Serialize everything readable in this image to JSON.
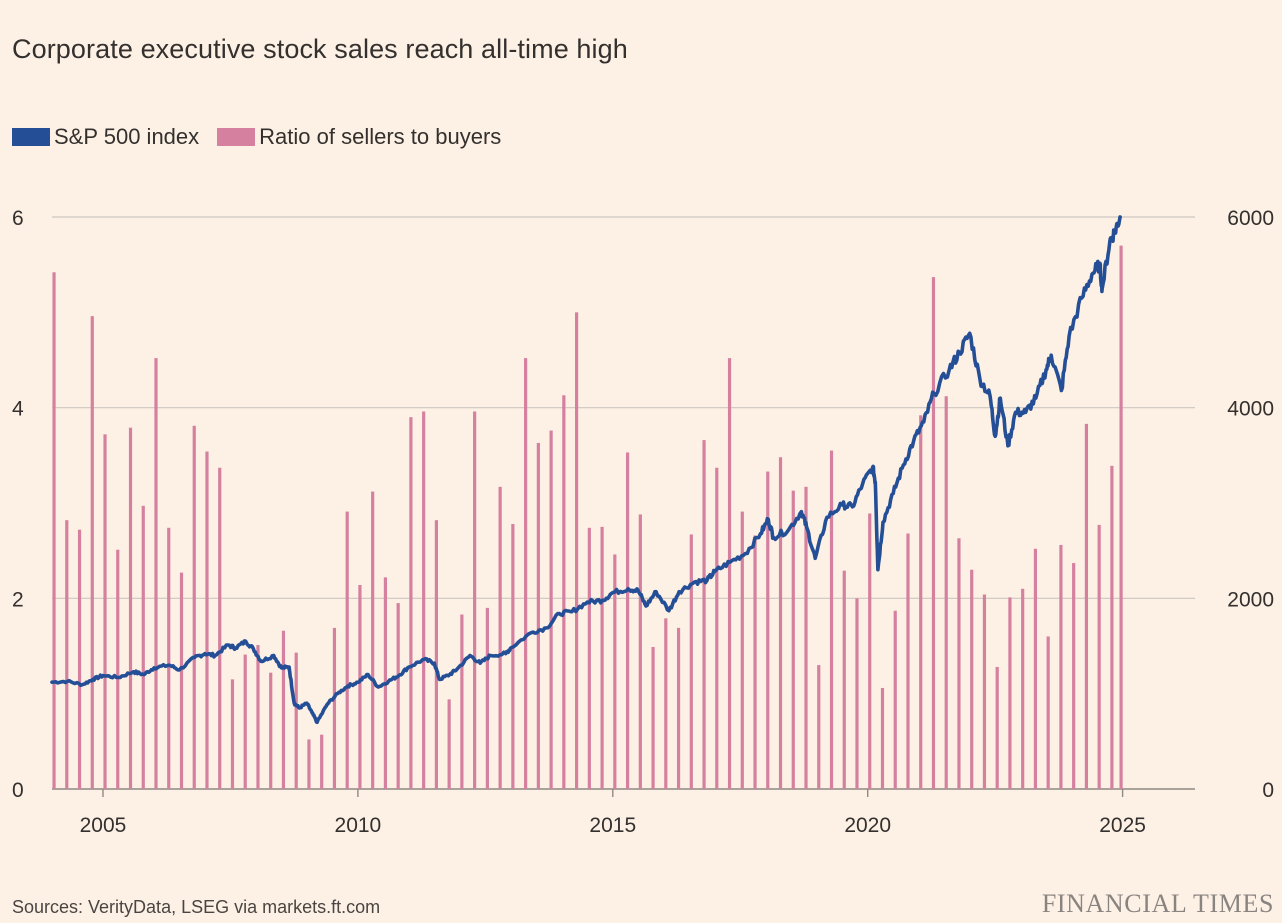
{
  "title": "Corporate executive stock sales reach all-time high",
  "legend": [
    {
      "label": "S&P 500 index",
      "color": "#244f96"
    },
    {
      "label": "Ratio of sellers to buyers",
      "color": "#d5809f"
    }
  ],
  "source": "Sources: VerityData, LSEG via markets.ft.com",
  "brand": "FINANCIAL TIMES",
  "colors": {
    "background": "#fdf1e6",
    "grid": "#cdc6bf",
    "text": "#33302e"
  },
  "chart_data": {
    "type": "bar+line",
    "left_axis": {
      "ticks": [
        0,
        2,
        4,
        6
      ],
      "range": [
        0,
        6
      ]
    },
    "right_axis": {
      "ticks": [
        0,
        2000,
        4000,
        6000
      ],
      "range": [
        0,
        6000
      ]
    },
    "x_axis": {
      "ticks": [
        2005,
        2010,
        2015,
        2020,
        2025
      ],
      "range": [
        2004.0,
        2025.4
      ]
    },
    "grid": true,
    "series": [
      {
        "name": "Ratio of sellers to buyers",
        "type": "bar",
        "axis": "left",
        "x": [
          2004.04,
          2004.29,
          2004.54,
          2004.79,
          2005.04,
          2005.29,
          2005.54,
          2005.79,
          2006.04,
          2006.29,
          2006.54,
          2006.79,
          2007.04,
          2007.29,
          2007.54,
          2007.79,
          2008.04,
          2008.29,
          2008.54,
          2008.79,
          2009.04,
          2009.29,
          2009.54,
          2009.79,
          2010.04,
          2010.29,
          2010.54,
          2010.79,
          2011.04,
          2011.29,
          2011.54,
          2011.79,
          2012.04,
          2012.29,
          2012.54,
          2012.79,
          2013.04,
          2013.29,
          2013.54,
          2013.79,
          2014.04,
          2014.29,
          2014.54,
          2014.79,
          2015.04,
          2015.29,
          2015.54,
          2015.79,
          2016.04,
          2016.29,
          2016.54,
          2016.79,
          2017.04,
          2017.29,
          2017.54,
          2017.79,
          2018.04,
          2018.29,
          2018.54,
          2018.79,
          2019.04,
          2019.29,
          2019.54,
          2019.79,
          2020.04,
          2020.29,
          2020.54,
          2020.79,
          2021.04,
          2021.29,
          2021.54,
          2021.79,
          2022.04,
          2022.29,
          2022.54,
          2022.79,
          2023.04,
          2023.29,
          2023.54,
          2023.79,
          2024.04,
          2024.29,
          2024.54,
          2024.79
        ],
        "values": [
          5.42,
          2.82,
          2.72,
          4.96,
          3.72,
          2.51,
          3.79,
          2.97,
          4.52,
          2.74,
          2.27,
          3.81,
          3.54,
          3.37,
          1.15,
          1.41,
          1.51,
          1.22,
          1.66,
          1.43,
          0.52,
          0.57,
          1.69,
          2.91,
          2.14,
          3.12,
          2.22,
          1.95,
          3.9,
          3.96,
          2.82,
          0.94,
          1.83,
          3.96,
          1.9,
          3.17,
          2.78,
          4.52,
          3.63,
          3.76,
          4.13,
          5.0,
          2.74,
          2.75,
          2.46,
          3.53,
          2.88,
          1.49,
          1.79,
          1.69,
          2.67,
          3.66,
          3.37,
          4.52,
          2.91,
          2.66,
          3.33,
          3.48,
          3.13,
          3.17,
          1.3,
          3.55,
          2.29,
          2.0,
          2.89,
          1.06,
          1.87,
          2.68,
          3.92,
          5.37,
          4.12,
          2.63,
          2.3,
          2.04,
          1.28,
          2.01,
          2.1,
          2.52,
          1.6,
          2.56,
          2.37,
          3.83,
          2.77,
          3.39
        ],
        "last": {
          "x": 2024.97,
          "value": 5.7
        }
      },
      {
        "name": "S&P 500 index",
        "type": "line",
        "axis": "right",
        "points": [
          [
            2004.0,
            1120
          ],
          [
            2004.3,
            1130
          ],
          [
            2004.6,
            1095
          ],
          [
            2004.8,
            1150
          ],
          [
            2005.0,
            1190
          ],
          [
            2005.3,
            1170
          ],
          [
            2005.6,
            1230
          ],
          [
            2005.8,
            1200
          ],
          [
            2006.0,
            1270
          ],
          [
            2006.3,
            1300
          ],
          [
            2006.5,
            1250
          ],
          [
            2006.8,
            1380
          ],
          [
            2007.0,
            1420
          ],
          [
            2007.2,
            1400
          ],
          [
            2007.45,
            1510
          ],
          [
            2007.6,
            1480
          ],
          [
            2007.8,
            1550
          ],
          [
            2007.95,
            1470
          ],
          [
            2008.1,
            1340
          ],
          [
            2008.35,
            1400
          ],
          [
            2008.5,
            1270
          ],
          [
            2008.65,
            1280
          ],
          [
            2008.75,
            900
          ],
          [
            2008.85,
            850
          ],
          [
            2009.0,
            900
          ],
          [
            2009.1,
            800
          ],
          [
            2009.2,
            700
          ],
          [
            2009.4,
            890
          ],
          [
            2009.6,
            1000
          ],
          [
            2009.8,
            1080
          ],
          [
            2010.0,
            1120
          ],
          [
            2010.2,
            1200
          ],
          [
            2010.4,
            1070
          ],
          [
            2010.6,
            1130
          ],
          [
            2010.8,
            1190
          ],
          [
            2011.0,
            1280
          ],
          [
            2011.3,
            1360
          ],
          [
            2011.5,
            1320
          ],
          [
            2011.6,
            1150
          ],
          [
            2011.8,
            1200
          ],
          [
            2011.95,
            1260
          ],
          [
            2012.2,
            1400
          ],
          [
            2012.4,
            1320
          ],
          [
            2012.6,
            1400
          ],
          [
            2012.9,
            1420
          ],
          [
            2013.0,
            1480
          ],
          [
            2013.4,
            1640
          ],
          [
            2013.7,
            1690
          ],
          [
            2013.95,
            1840
          ],
          [
            2014.2,
            1860
          ],
          [
            2014.5,
            1960
          ],
          [
            2014.8,
            1980
          ],
          [
            2015.0,
            2060
          ],
          [
            2015.3,
            2100
          ],
          [
            2015.5,
            2080
          ],
          [
            2015.65,
            1920
          ],
          [
            2015.85,
            2070
          ],
          [
            2016.1,
            1870
          ],
          [
            2016.3,
            2070
          ],
          [
            2016.6,
            2170
          ],
          [
            2016.85,
            2190
          ],
          [
            2017.0,
            2280
          ],
          [
            2017.3,
            2380
          ],
          [
            2017.6,
            2470
          ],
          [
            2017.9,
            2680
          ],
          [
            2018.05,
            2830
          ],
          [
            2018.15,
            2640
          ],
          [
            2018.45,
            2720
          ],
          [
            2018.7,
            2910
          ],
          [
            2018.8,
            2750
          ],
          [
            2018.97,
            2420
          ],
          [
            2019.2,
            2850
          ],
          [
            2019.5,
            2980
          ],
          [
            2019.7,
            2960
          ],
          [
            2019.9,
            3200
          ],
          [
            2020.1,
            3380
          ],
          [
            2020.15,
            3220
          ],
          [
            2020.2,
            2300
          ],
          [
            2020.3,
            2800
          ],
          [
            2020.5,
            3100
          ],
          [
            2020.7,
            3400
          ],
          [
            2020.9,
            3650
          ],
          [
            2021.1,
            3850
          ],
          [
            2021.3,
            4150
          ],
          [
            2021.6,
            4400
          ],
          [
            2021.8,
            4580
          ],
          [
            2022.0,
            4780
          ],
          [
            2022.2,
            4300
          ],
          [
            2022.4,
            4120
          ],
          [
            2022.5,
            3700
          ],
          [
            2022.6,
            4100
          ],
          [
            2022.75,
            3600
          ],
          [
            2022.9,
            3950
          ],
          [
            2023.1,
            3950
          ],
          [
            2023.3,
            4100
          ],
          [
            2023.5,
            4400
          ],
          [
            2023.6,
            4550
          ],
          [
            2023.8,
            4180
          ],
          [
            2023.95,
            4750
          ],
          [
            2024.2,
            5150
          ],
          [
            2024.4,
            5400
          ],
          [
            2024.55,
            5500
          ],
          [
            2024.6,
            5250
          ],
          [
            2024.75,
            5750
          ],
          [
            2024.85,
            5850
          ],
          [
            2024.95,
            6000
          ]
        ]
      }
    ]
  }
}
